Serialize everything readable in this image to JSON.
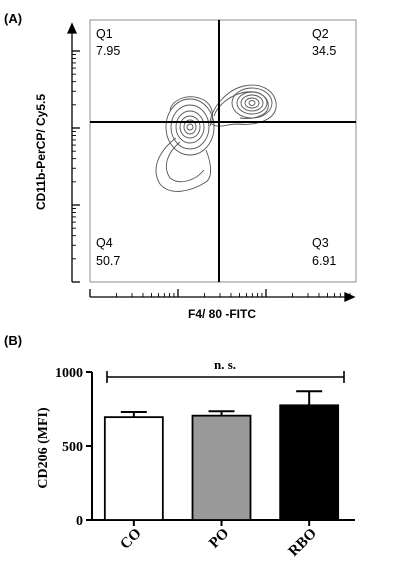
{
  "chart_data": [
    {
      "panel_label": "(A)",
      "type": "scatter",
      "subtype": "flow-cytometry contour plot",
      "xlabel": "F4/ 80 -FITC",
      "ylabel": "CD11b-PerCP/ Cy5.5",
      "axis_scale": "log",
      "quadrants": [
        {
          "name": "Q1",
          "value": "7.95"
        },
        {
          "name": "Q2",
          "value": "34.5"
        },
        {
          "name": "Q3",
          "value": "6.91"
        },
        {
          "name": "Q4",
          "value": "50.7"
        }
      ],
      "contour_color": "#555555"
    },
    {
      "panel_label": "(B)",
      "type": "bar",
      "categories": [
        "CO",
        "PO",
        "RBO"
      ],
      "values": [
        695,
        705,
        775
      ],
      "errors": [
        35,
        30,
        95
      ],
      "bar_colors": [
        "#ffffff",
        "#999999",
        "#000000"
      ],
      "ylabel": "CD206 (MFI)",
      "ylim": [
        0,
        1000
      ],
      "yticks": [
        "0",
        "500",
        "1000"
      ],
      "annotation": "n. s."
    }
  ]
}
